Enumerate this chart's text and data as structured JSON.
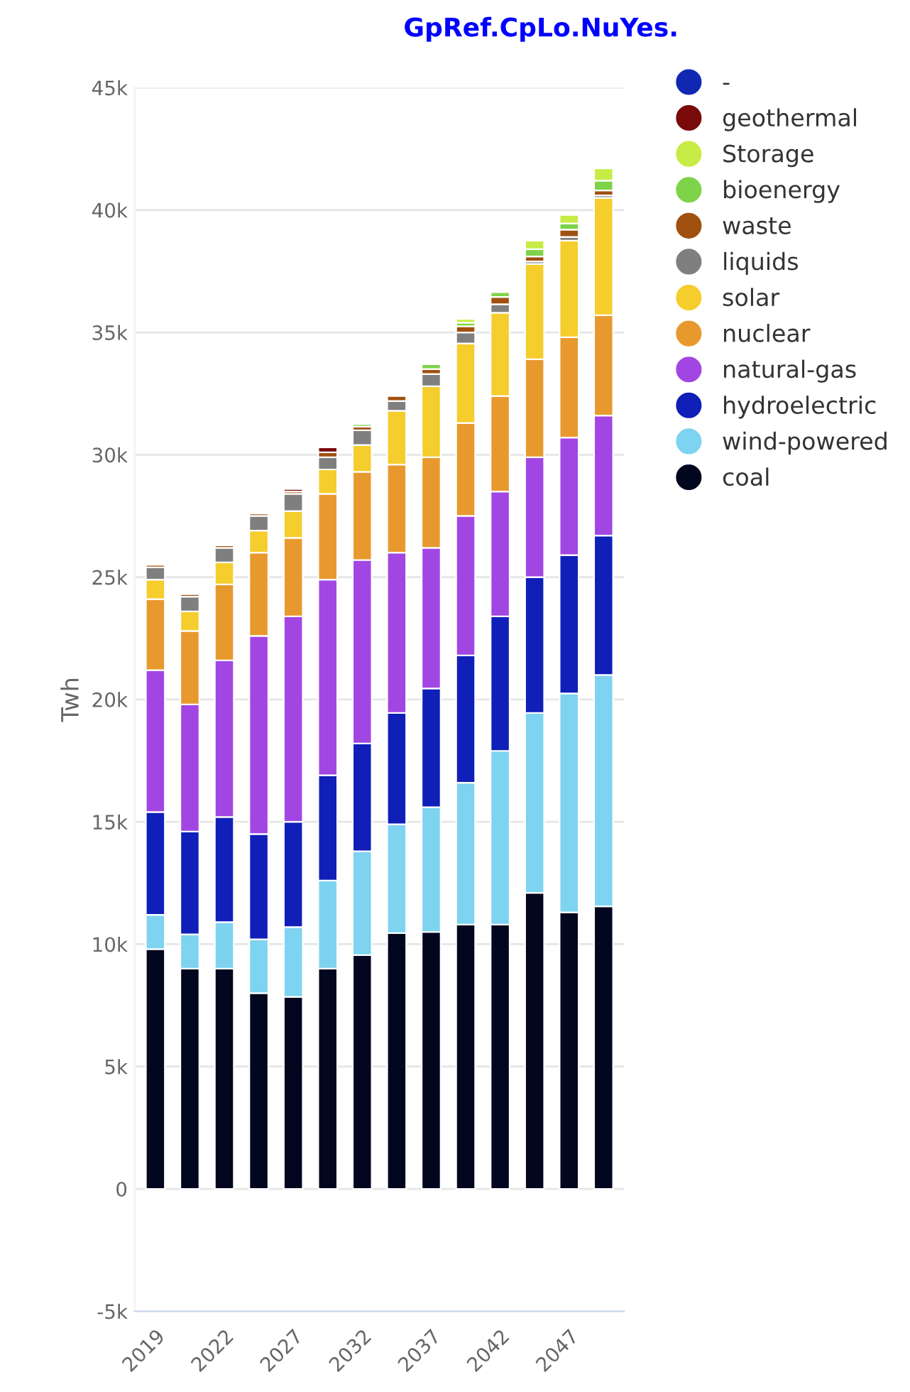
{
  "chart_data": {
    "type": "bar",
    "title": "GpRef.CpLo.NuYes.",
    "ylabel": "Twh",
    "stacked": true,
    "categories": [
      "2019",
      null,
      "2022",
      null,
      "2027",
      null,
      "2032",
      null,
      "2037",
      null,
      "2042",
      null,
      "2047",
      null
    ],
    "series": [
      {
        "name": "coal",
        "color": "#03061f",
        "values": [
          9800,
          9000,
          9000,
          8000,
          7850,
          9000,
          9550,
          10450,
          10500,
          10800,
          10800,
          12100,
          11300,
          11550
        ]
      },
      {
        "name": "wind-powered",
        "color": "#7dd3f0",
        "values": [
          1400,
          1400,
          1900,
          2200,
          2850,
          3600,
          4250,
          4450,
          5100,
          5800,
          7100,
          7350,
          8950,
          9450
        ]
      },
      {
        "name": "hydroelectric",
        "color": "#0f1fb8",
        "values": [
          4200,
          4200,
          4300,
          4300,
          4300,
          4300,
          4400,
          4550,
          4850,
          5200,
          5500,
          5550,
          5650,
          5700
        ]
      },
      {
        "name": "natural-gas",
        "color": "#a246e3",
        "values": [
          5800,
          5200,
          6400,
          8100,
          8400,
          8000,
          7500,
          6550,
          5750,
          5700,
          5100,
          4900,
          4800,
          4900
        ]
      },
      {
        "name": "nuclear",
        "color": "#e8992e",
        "values": [
          2900,
          3000,
          3100,
          3400,
          3200,
          3500,
          3600,
          3600,
          3700,
          3800,
          3900,
          4000,
          4100,
          4100
        ]
      },
      {
        "name": "solar",
        "color": "#f5cd2c",
        "values": [
          800,
          800,
          900,
          900,
          1100,
          1000,
          1100,
          2200,
          2900,
          3250,
          3400,
          3900,
          3950,
          4800
        ]
      },
      {
        "name": "liquids",
        "color": "#7f7f7f",
        "values": [
          500,
          600,
          600,
          600,
          700,
          500,
          600,
          400,
          500,
          450,
          350,
          100,
          150,
          100
        ]
      },
      {
        "name": "waste",
        "color": "#a0500f",
        "values": [
          100,
          100,
          100,
          100,
          100,
          200,
          150,
          200,
          200,
          250,
          300,
          200,
          300,
          200
        ]
      },
      {
        "name": "bioenergy",
        "color": "#7fd34a",
        "values": [
          0,
          0,
          0,
          0,
          0,
          0,
          100,
          0,
          200,
          150,
          200,
          300,
          250,
          400
        ]
      },
      {
        "name": "Storage",
        "color": "#c6ec45",
        "values": [
          0,
          0,
          0,
          0,
          0,
          0,
          0,
          0,
          0,
          150,
          50,
          350,
          350,
          500
        ]
      },
      {
        "name": "geothermal",
        "color": "#7a0a0a",
        "values": [
          0,
          0,
          0,
          0,
          100,
          200,
          0,
          0,
          0,
          0,
          0,
          0,
          0,
          0
        ]
      },
      {
        "name": "-",
        "color": "#1128b3",
        "values": [
          0,
          0,
          0,
          0,
          0,
          0,
          0,
          0,
          0,
          0,
          0,
          0,
          0,
          0
        ]
      }
    ],
    "ylim": [
      -5000,
      45000
    ],
    "yticks": [
      {
        "value": -5000,
        "label": "-5k"
      },
      0,
      {
        "value": 5000,
        "label": "5k"
      },
      {
        "value": 10000,
        "label": "10k"
      },
      {
        "value": 15000,
        "label": "15k"
      },
      {
        "value": 20000,
        "label": "20k"
      },
      {
        "value": 25000,
        "label": "25k"
      },
      {
        "value": 30000,
        "label": "30k"
      },
      {
        "value": 35000,
        "label": "35k"
      },
      {
        "value": 40000,
        "label": "40k"
      },
      {
        "value": 45000,
        "label": "45k"
      }
    ],
    "grid": "y",
    "legend": "right"
  }
}
